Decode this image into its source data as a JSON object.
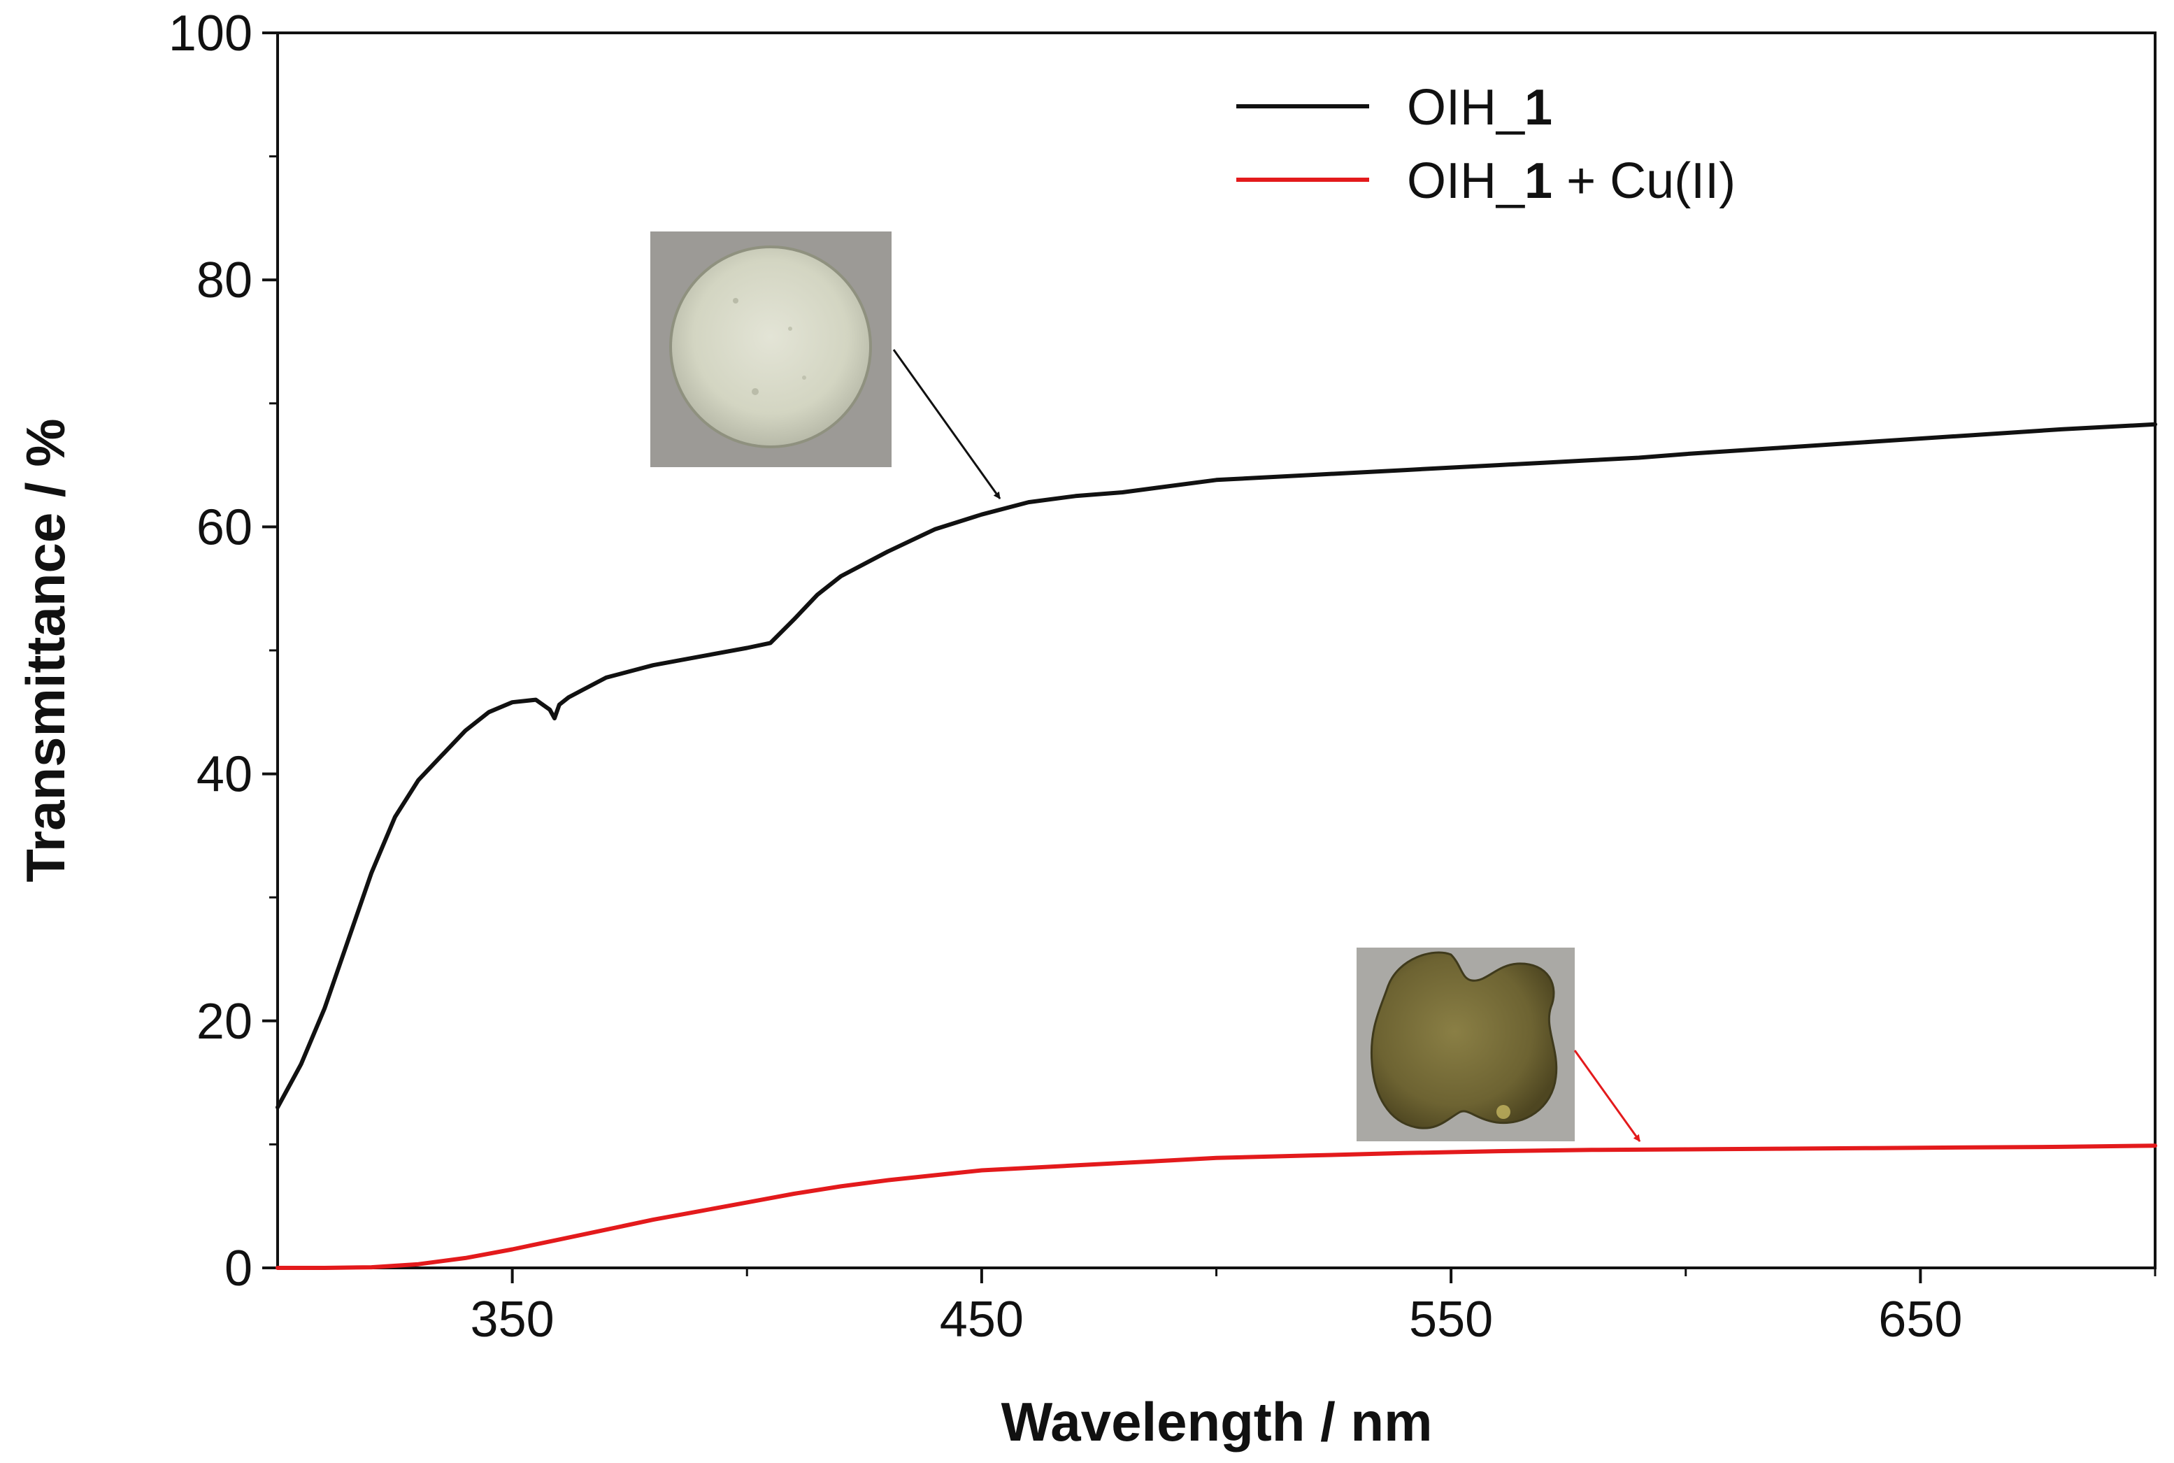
{
  "chart_data": {
    "type": "line",
    "title": "",
    "xlabel": "Wavelength / nm",
    "ylabel": "Transmittance / %",
    "xlim": [
      300,
      700
    ],
    "ylim": [
      0,
      100
    ],
    "xticks": [
      350,
      450,
      550,
      650
    ],
    "xticks_minor": [
      400,
      500,
      600,
      700
    ],
    "yticks": [
      0,
      20,
      40,
      60,
      80,
      100
    ],
    "grid": false,
    "legend_position": "top-right",
    "series": [
      {
        "name": "OIH_1",
        "name_prefix": "OIH_",
        "name_bold": "1",
        "name_suffix": "",
        "color": "#111111",
        "x": [
          300,
          305,
          310,
          315,
          320,
          325,
          330,
          335,
          340,
          345,
          350,
          355,
          358,
          359,
          360,
          362,
          365,
          370,
          380,
          390,
          400,
          405,
          410,
          415,
          420,
          430,
          440,
          450,
          460,
          470,
          480,
          490,
          500,
          510,
          520,
          530,
          540,
          550,
          560,
          570,
          580,
          590,
          600,
          620,
          640,
          660,
          680,
          700
        ],
        "y": [
          13,
          16.5,
          21,
          26.5,
          32,
          36.5,
          39.5,
          41.5,
          43.5,
          45,
          45.8,
          46,
          45.2,
          44.5,
          45.6,
          46.2,
          46.8,
          47.8,
          48.8,
          49.5,
          50.2,
          50.6,
          52.5,
          54.5,
          56,
          58,
          59.8,
          61,
          62,
          62.5,
          62.8,
          63.3,
          63.8,
          64,
          64.2,
          64.4,
          64.6,
          64.8,
          65,
          65.2,
          65.4,
          65.6,
          65.9,
          66.4,
          66.9,
          67.4,
          67.9,
          68.3
        ]
      },
      {
        "name": "OIH_1 + Cu(II)",
        "name_prefix": "OIH_",
        "name_bold": "1",
        "name_suffix": " + Cu(II)",
        "color": "#e31a1c",
        "x": [
          300,
          310,
          320,
          330,
          340,
          350,
          360,
          370,
          380,
          390,
          400,
          410,
          420,
          430,
          440,
          450,
          460,
          470,
          480,
          490,
          500,
          520,
          540,
          560,
          580,
          600,
          620,
          640,
          660,
          680,
          700
        ],
        "y": [
          0,
          0,
          0.05,
          0.3,
          0.8,
          1.5,
          2.3,
          3.1,
          3.9,
          4.6,
          5.3,
          6.0,
          6.6,
          7.1,
          7.5,
          7.9,
          8.1,
          8.3,
          8.5,
          8.7,
          8.9,
          9.1,
          9.3,
          9.45,
          9.55,
          9.6,
          9.65,
          9.7,
          9.75,
          9.8,
          9.9
        ]
      }
    ]
  },
  "insets": [
    {
      "name": "OIH_1 sample photo",
      "description": "round translucent disc",
      "arrow_color": "#111111"
    },
    {
      "name": "OIH_1 + Cu(II) sample photo",
      "description": "greenish-brown fragment",
      "arrow_color": "#e31a1c"
    }
  ],
  "colors": {
    "axis": "#111111",
    "background": "#ffffff",
    "photo_bg_1": "#9c9a96",
    "photo_bg_2": "#aaa9a5"
  }
}
